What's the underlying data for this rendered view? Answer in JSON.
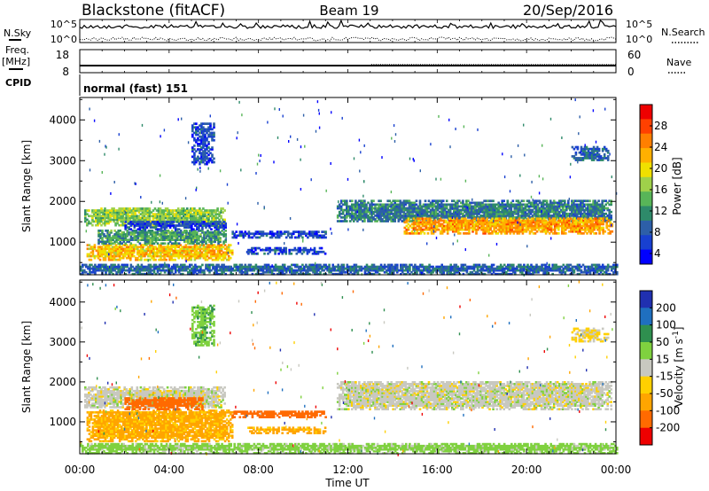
{
  "header": {
    "site": "Blackstone (fitACF)",
    "beam": "Beam 19",
    "date": "20/Sep/2016"
  },
  "left_labels": {
    "nsky": "N.Sky",
    "freq": "Freq.",
    "mhz": "[MHz]",
    "cpid": "CPID"
  },
  "right_labels": {
    "nsearch": "N.Search",
    "nave": "Nave"
  },
  "cpid_value": "normal (fast) 151",
  "colors": {
    "axis": "#000000"
  },
  "chart_data": [
    {
      "type": "line",
      "name": "noise",
      "left_ticks": [
        "10^5",
        "10^0"
      ],
      "right_ticks": [
        "10^5",
        "10^0"
      ]
    },
    {
      "type": "line",
      "name": "freq-nave",
      "left_ticks": [
        18,
        8
      ],
      "right_ticks": [
        60,
        0
      ],
      "freq": {
        "x": [
          0,
          24
        ],
        "y": [
          10.5,
          10.5
        ]
      },
      "nave": {
        "x": [
          0,
          13,
          13,
          24
        ],
        "y": [
          17,
          17,
          20,
          20
        ]
      }
    },
    {
      "type": "heatmap",
      "name": "power",
      "ylabel": "Slant Range [km]",
      "yticks": [
        1000,
        2000,
        3000,
        4000
      ],
      "ylim": [
        200,
        4550
      ],
      "xlim": [
        0,
        24
      ],
      "colorbar": {
        "label": "Power [dB]",
        "ticks": [
          4,
          8,
          12,
          16,
          20,
          24,
          28
        ],
        "colors": [
          "#0000ff",
          "#1840d0",
          "#2d5fa8",
          "#2e8a6a",
          "#58b558",
          "#9fd14a",
          "#f0e000",
          "#ffb000",
          "#ff7f00",
          "#ff4000",
          "#ee0000"
        ]
      },
      "regions": [
        {
          "x0": 0.3,
          "x1": 6.8,
          "y0": 550,
          "y1": 950,
          "level": 22
        },
        {
          "x0": 0.8,
          "x1": 6.5,
          "y0": 950,
          "y1": 1300,
          "level": 12
        },
        {
          "x0": 0.2,
          "x1": 6.5,
          "y0": 1400,
          "y1": 1850,
          "level": 16
        },
        {
          "x0": 2.0,
          "x1": 6.5,
          "y0": 1300,
          "y1": 1500,
          "level": 6
        },
        {
          "x0": 6.8,
          "x1": 11.0,
          "y0": 1100,
          "y1": 1250,
          "level": 6
        },
        {
          "x0": 7.5,
          "x1": 11.0,
          "y0": 700,
          "y1": 850,
          "level": 6
        },
        {
          "x0": 11.5,
          "x1": 23.8,
          "y0": 1500,
          "y1": 2000,
          "level": 10
        },
        {
          "x0": 14.5,
          "x1": 23.8,
          "y0": 1200,
          "y1": 1600,
          "level": 24
        },
        {
          "x0": 5.0,
          "x1": 6.0,
          "y0": 2900,
          "y1": 3900,
          "level": 6
        },
        {
          "x0": 22.0,
          "x1": 23.6,
          "y0": 3000,
          "y1": 3350,
          "level": 8
        },
        {
          "x0": 0.0,
          "x1": 24.0,
          "y0": 200,
          "y1": 450,
          "level": 8
        }
      ]
    },
    {
      "type": "heatmap",
      "name": "velocity",
      "ylabel": "Slant Range [km]",
      "xlabel": "Time UT",
      "xticks": [
        "00:00",
        "04:00",
        "08:00",
        "12:00",
        "16:00",
        "20:00",
        "00:00"
      ],
      "yticks": [
        1000,
        2000,
        3000,
        4000
      ],
      "ylim": [
        200,
        4550
      ],
      "xlim": [
        0,
        24
      ],
      "colorbar": {
        "label": "Velocity [m s^-1]",
        "ticks": [
          200,
          100,
          50,
          15,
          -15,
          -50,
          -100,
          -200
        ],
        "colors": [
          "#2030b0",
          "#1f6fbf",
          "#2f8f4f",
          "#7fd13f",
          "#c8c8c0",
          "#ffd000",
          "#ffa500",
          "#ff6a00",
          "#ee0000"
        ]
      },
      "regions": [
        {
          "x0": 0.3,
          "x1": 6.8,
          "y0": 500,
          "y1": 1300,
          "level": -60
        },
        {
          "x0": 0.2,
          "x1": 6.5,
          "y0": 1350,
          "y1": 1850,
          "level": 0
        },
        {
          "x0": 2.0,
          "x1": 5.5,
          "y0": 1300,
          "y1": 1600,
          "level": -180
        },
        {
          "x0": 6.8,
          "x1": 11.0,
          "y0": 1100,
          "y1": 1250,
          "level": -120
        },
        {
          "x0": 7.5,
          "x1": 11.0,
          "y0": 700,
          "y1": 850,
          "level": -60
        },
        {
          "x0": 11.5,
          "x1": 23.8,
          "y0": 1300,
          "y1": 2000,
          "level": 0
        },
        {
          "x0": 5.0,
          "x1": 6.0,
          "y0": 2900,
          "y1": 3900,
          "level": 40
        },
        {
          "x0": 22.0,
          "x1": 23.6,
          "y0": 3000,
          "y1": 3350,
          "level": -20
        },
        {
          "x0": 0.0,
          "x1": 24.0,
          "y0": 200,
          "y1": 450,
          "level": 30
        }
      ]
    }
  ]
}
